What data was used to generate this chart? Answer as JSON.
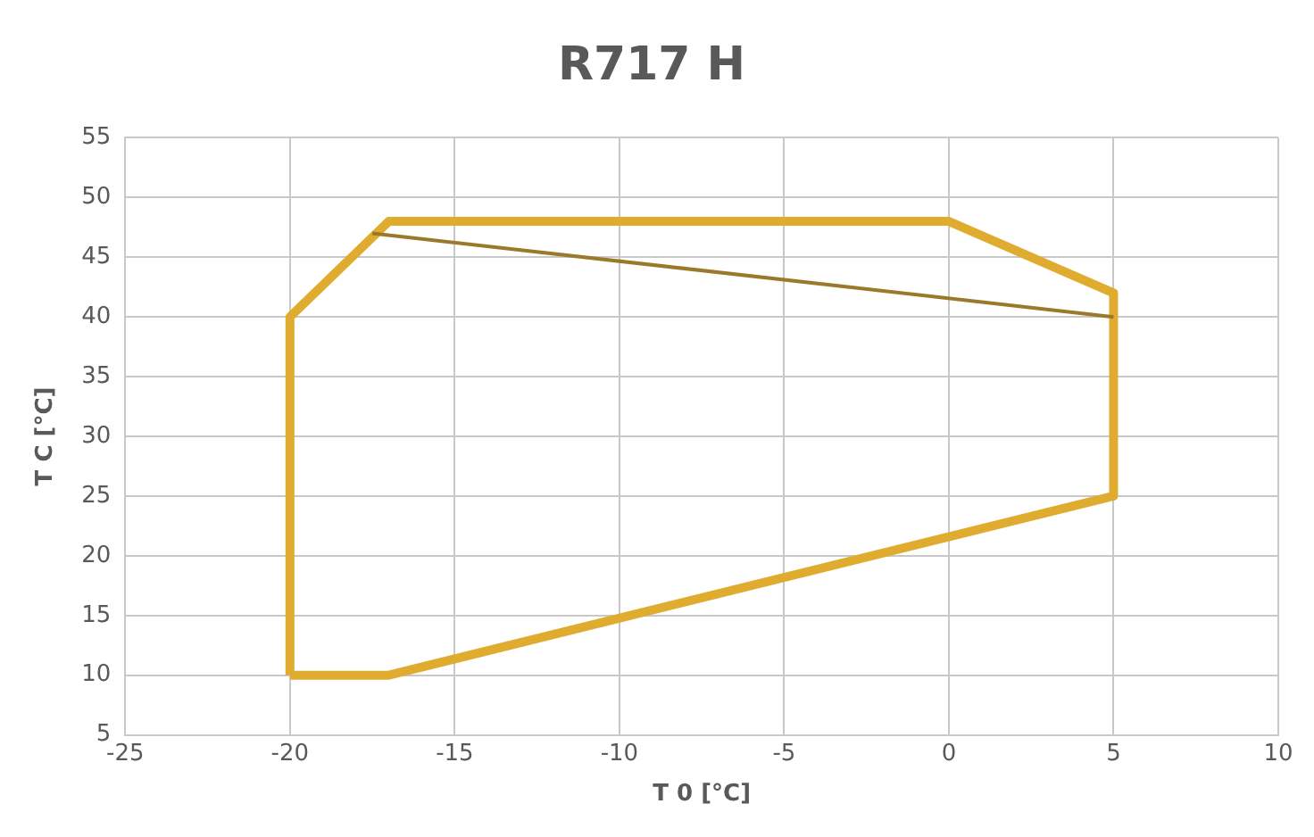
{
  "chart_data": {
    "type": "line",
    "title": "R717 H",
    "xlabel": "T 0 [°C]",
    "ylabel": "T C [°C]",
    "xlim": [
      -25,
      10
    ],
    "xticks": [
      -25,
      -20,
      -15,
      -10,
      -5,
      0,
      5,
      10
    ],
    "ylim": [
      5,
      55
    ],
    "yticks": [
      5,
      10,
      15,
      20,
      25,
      30,
      35,
      40,
      45,
      50,
      55
    ],
    "grid": true,
    "legend": false,
    "marker": "none",
    "series": [
      {
        "color": "#9a7a2a",
        "x": [
          -17.5,
          5
        ],
        "values": [
          47,
          40
        ]
      },
      {
        "color": "#e0ac2f",
        "x": [
          -20,
          -20,
          -17,
          0,
          5,
          5
        ],
        "values": [
          10,
          40,
          48,
          48,
          42,
          25
        ]
      },
      {
        "color": "#e0ac2f",
        "x": [
          -20,
          -17,
          5
        ],
        "values": [
          10,
          10,
          25
        ]
      }
    ]
  }
}
